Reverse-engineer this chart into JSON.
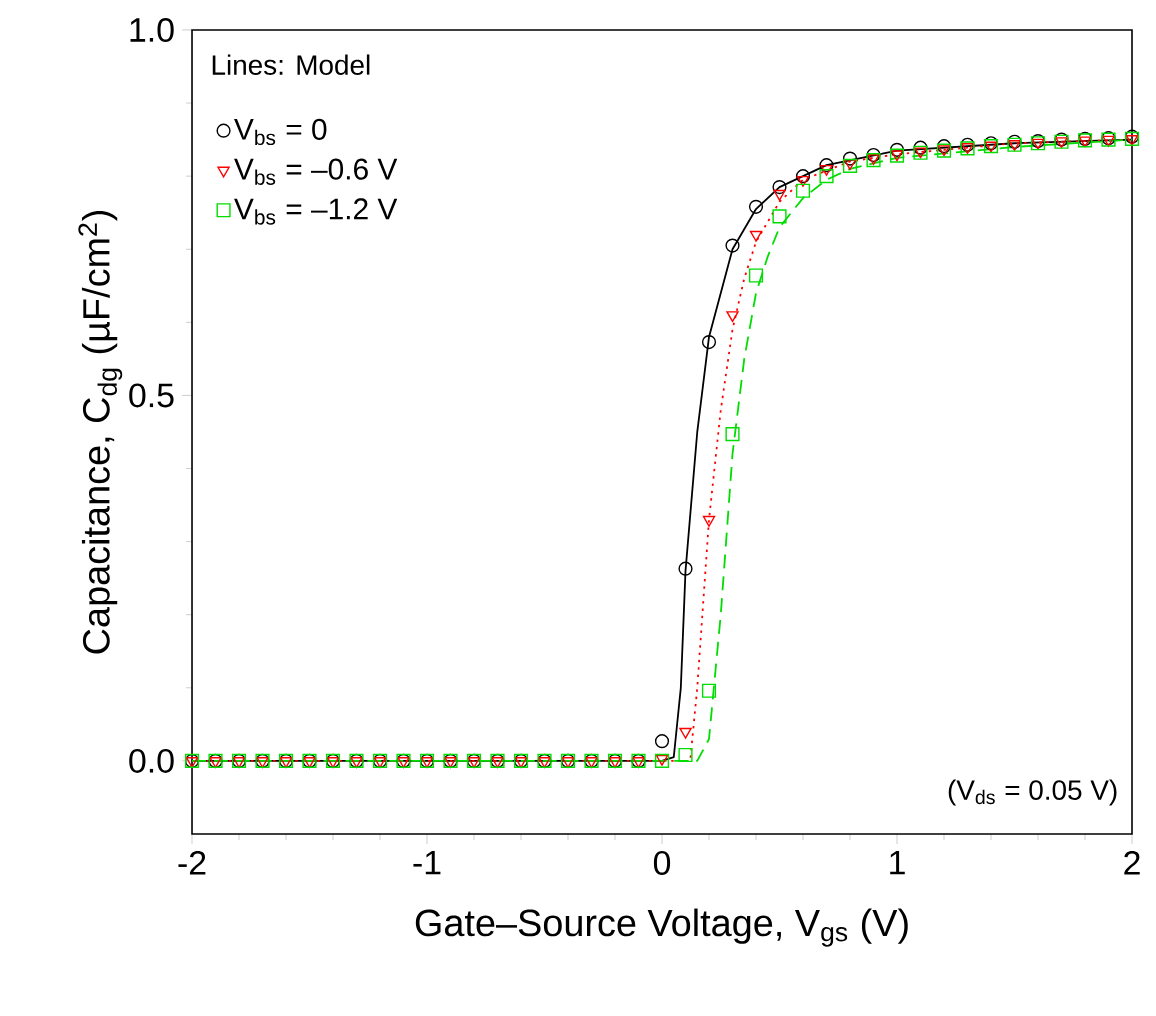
{
  "chart_data": {
    "type": "line",
    "xlabel": "Gate–Source Voltage, V$_{gs}$ (V)",
    "ylabel": "Capacitance, C$_{dg}$ (µF/cm$^{2}$)",
    "annotations": [
      "Lines: Model",
      "(V$_{ds}$ = 0.05 V)"
    ],
    "xlim": [
      -2,
      2
    ],
    "ylim": [
      -0.1,
      1.0
    ],
    "xticks": [
      -2,
      -1,
      0,
      1,
      2
    ],
    "yticks": [
      {
        "value": 0,
        "label": "0.0"
      },
      {
        "value": 0.5,
        "label": "0.5"
      },
      {
        "value": 1,
        "label": "1.0"
      }
    ],
    "legend": "top left",
    "grid": false,
    "series": [
      {
        "name": "V$_{bs}$ = 0",
        "type": "scatter",
        "marker": "circle",
        "color": "#000000",
        "x": [
          -2,
          -1.9,
          -1.8,
          -1.7,
          -1.6,
          -1.5,
          -1.4,
          -1.3,
          -1.2,
          -1.1,
          -1,
          -0.9,
          -0.8,
          -0.7,
          -0.6,
          -0.5,
          -0.4,
          -0.3,
          -0.2,
          -0.1,
          0,
          0.1,
          0.2,
          0.3,
          0.4,
          0.5,
          0.6,
          0.7,
          0.8,
          0.9,
          1,
          1.1,
          1.2,
          1.3,
          1.4,
          1.5,
          1.6,
          1.7,
          1.8,
          1.9,
          2
        ],
        "values": [
          0,
          0,
          0,
          0,
          0,
          0,
          0,
          0,
          0,
          0,
          0,
          0,
          0,
          0,
          0,
          0,
          0,
          0,
          0,
          0,
          0.027,
          0.263,
          0.573,
          0.705,
          0.758,
          0.785,
          0.8,
          0.815,
          0.824,
          0.829,
          0.836,
          0.839,
          0.841,
          0.843,
          0.845,
          0.847,
          0.848,
          0.85,
          0.851,
          0.852,
          0.854
        ]
      },
      {
        "name": "V$_{bs}$ = –0.6 V",
        "type": "scatter",
        "marker": "triangle",
        "color": "#ff0000",
        "x": [
          -2,
          -1.9,
          -1.8,
          -1.7,
          -1.6,
          -1.5,
          -1.4,
          -1.3,
          -1.2,
          -1.1,
          -1,
          -0.9,
          -0.8,
          -0.7,
          -0.6,
          -0.5,
          -0.4,
          -0.3,
          -0.2,
          -0.1,
          0,
          0.1,
          0.2,
          0.3,
          0.4,
          0.5,
          0.6,
          0.7,
          0.8,
          0.9,
          1,
          1.1,
          1.2,
          1.3,
          1.4,
          1.5,
          1.6,
          1.7,
          1.8,
          1.9,
          2
        ],
        "values": [
          0,
          0,
          0,
          0,
          0,
          0,
          0,
          0,
          0,
          0,
          0,
          0,
          0,
          0,
          0,
          0,
          0,
          0,
          0,
          0,
          0.003,
          0.04,
          0.33,
          0.61,
          0.72,
          0.776,
          0.795,
          0.81,
          0.818,
          0.825,
          0.83,
          0.834,
          0.837,
          0.84,
          0.842,
          0.844,
          0.846,
          0.848,
          0.849,
          0.85,
          0.851
        ]
      },
      {
        "name": "V$_{bs}$ = –1.2 V",
        "type": "scatter",
        "marker": "square",
        "color": "#00dd00",
        "x": [
          -2,
          -1.9,
          -1.8,
          -1.7,
          -1.6,
          -1.5,
          -1.4,
          -1.3,
          -1.2,
          -1.1,
          -1,
          -0.9,
          -0.8,
          -0.7,
          -0.6,
          -0.5,
          -0.4,
          -0.3,
          -0.2,
          -0.1,
          0,
          0.1,
          0.2,
          0.3,
          0.4,
          0.5,
          0.6,
          0.7,
          0.8,
          0.9,
          1,
          1.1,
          1.2,
          1.3,
          1.4,
          1.5,
          1.6,
          1.7,
          1.8,
          1.9,
          2
        ],
        "values": [
          0,
          0,
          0,
          0,
          0,
          0,
          0,
          0,
          0,
          0,
          0,
          0,
          0,
          0,
          0,
          0,
          0,
          0,
          0,
          0,
          0,
          0.008,
          0.096,
          0.447,
          0.664,
          0.745,
          0.78,
          0.8,
          0.814,
          0.822,
          0.828,
          0.832,
          0.835,
          0.838,
          0.841,
          0.843,
          0.845,
          0.847,
          0.849,
          0.85,
          0.851
        ]
      },
      {
        "line_style": "solid",
        "color": "#000000",
        "x": [
          -2,
          0,
          0.05,
          0.08,
          0.1,
          0.15,
          0.2,
          0.3,
          0.4,
          0.5,
          0.7,
          1,
          1.5,
          2
        ],
        "values": [
          0,
          0,
          0.005,
          0.1,
          0.26,
          0.45,
          0.58,
          0.7,
          0.755,
          0.785,
          0.815,
          0.835,
          0.845,
          0.85
        ]
      },
      {
        "line_style": "dotted",
        "color": "#ff0000",
        "x": [
          -2,
          0.12,
          0.15,
          0.2,
          0.25,
          0.3,
          0.35,
          0.4,
          0.5,
          0.6,
          0.8,
          1,
          1.5,
          2
        ],
        "values": [
          0,
          0,
          0.1,
          0.33,
          0.48,
          0.59,
          0.66,
          0.71,
          0.765,
          0.795,
          0.82,
          0.83,
          0.845,
          0.85
        ]
      },
      {
        "line_style": "dashed",
        "color": "#00dd00",
        "x": [
          -2,
          0.15,
          0.2,
          0.25,
          0.3,
          0.35,
          0.4,
          0.45,
          0.5,
          0.6,
          0.7,
          0.8,
          1,
          1.5,
          2
        ],
        "values": [
          0,
          0,
          0.03,
          0.2,
          0.42,
          0.55,
          0.64,
          0.69,
          0.73,
          0.77,
          0.795,
          0.81,
          0.825,
          0.84,
          0.85
        ]
      }
    ]
  }
}
